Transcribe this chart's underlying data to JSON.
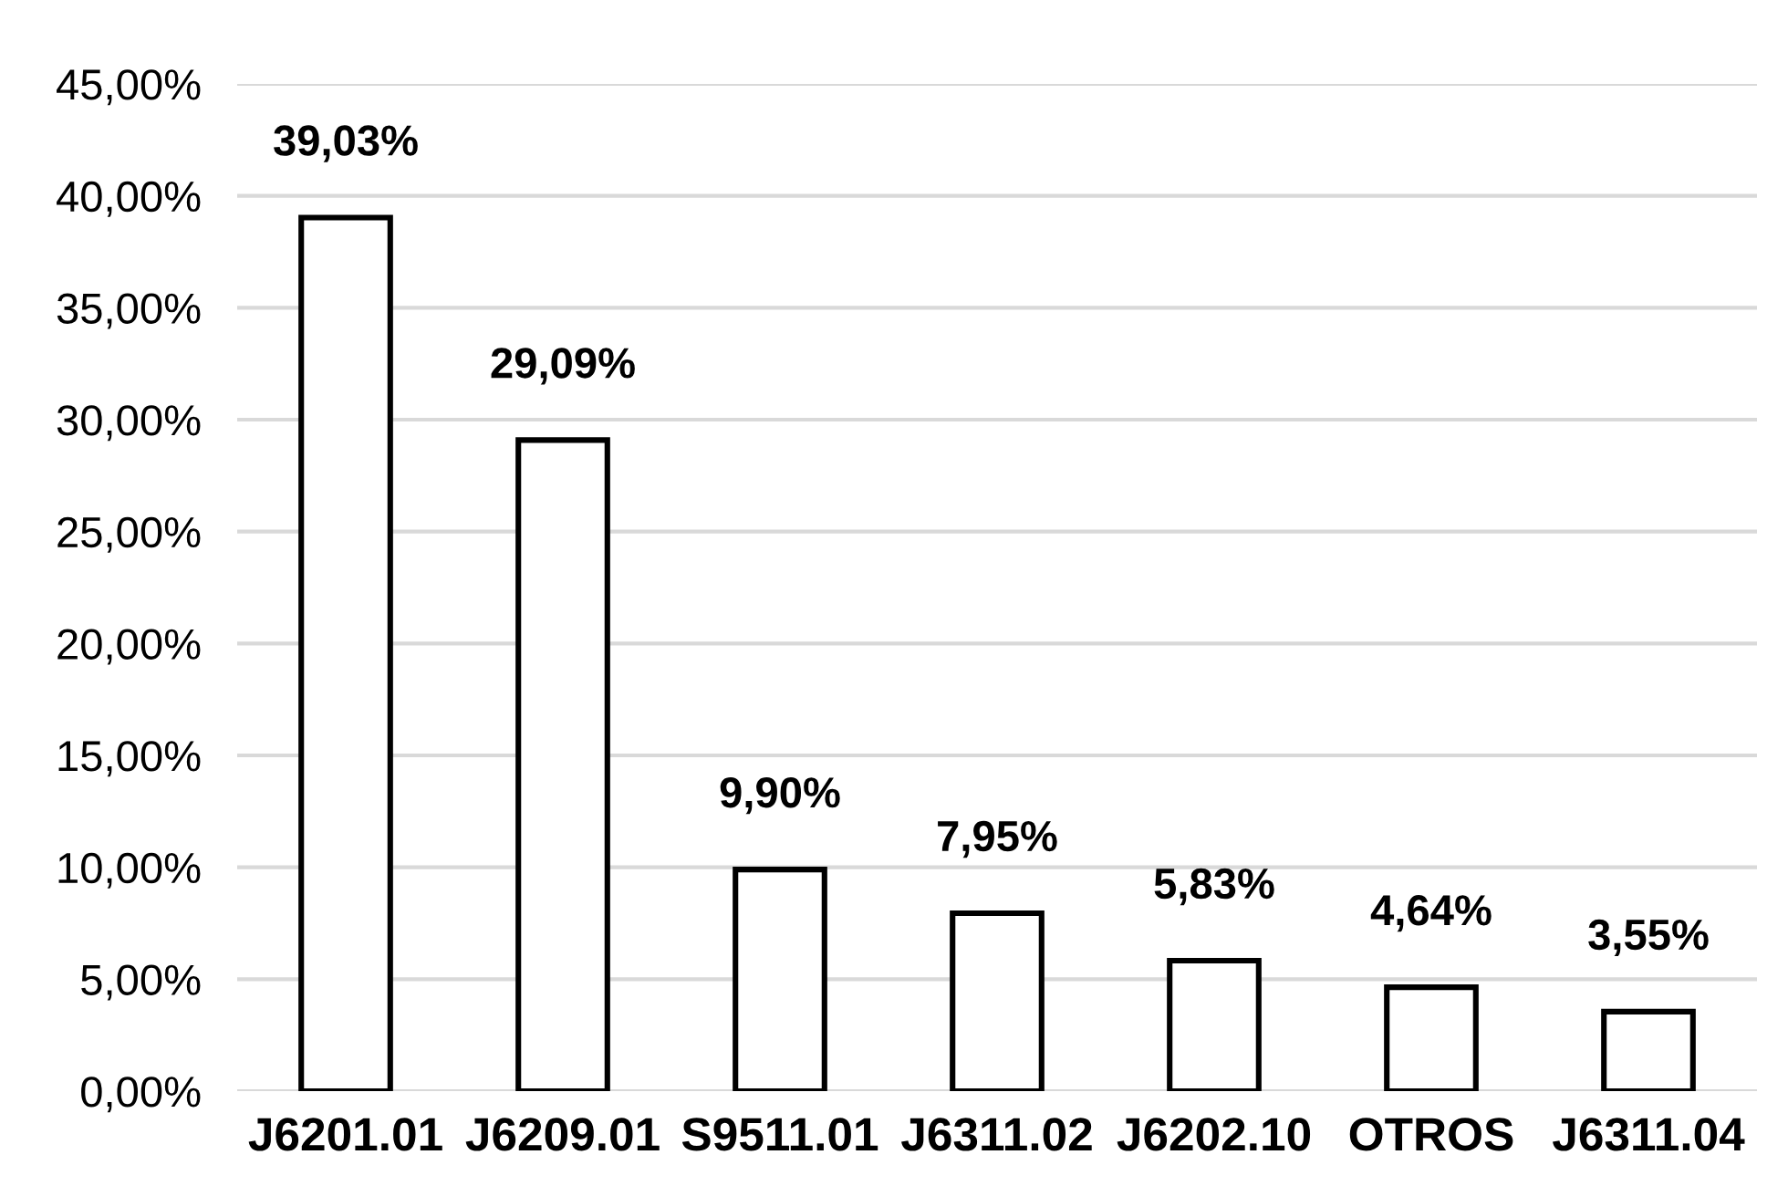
{
  "chart_data": {
    "type": "bar",
    "categories": [
      "J6201.01",
      "J6209.01",
      "S9511.01",
      "J6311.02",
      "J6202.10",
      "OTROS",
      "J6311.04"
    ],
    "values": [
      39.03,
      29.09,
      9.9,
      7.95,
      5.83,
      4.64,
      3.55
    ],
    "value_labels": [
      "39,03%",
      "29,09%",
      "9,90%",
      "7,95%",
      "5,83%",
      "4,64%",
      "3,55%"
    ],
    "color": "#ffffff",
    "ylim": [
      0,
      45
    ],
    "yticks": [
      {
        "value": 0,
        "label": "0,00%"
      },
      {
        "value": 5,
        "label": "5,00%"
      },
      {
        "value": 10,
        "label": "10,00%"
      },
      {
        "value": 15,
        "label": "15,00%"
      },
      {
        "value": 20,
        "label": "20,00%"
      },
      {
        "value": 25,
        "label": "25,00%"
      },
      {
        "value": 30,
        "label": "30,00%"
      },
      {
        "value": 35,
        "label": "35,00%"
      },
      {
        "value": 40,
        "label": "40,00%"
      },
      {
        "value": 45,
        "label": "45,00%"
      }
    ],
    "grid": "y"
  }
}
